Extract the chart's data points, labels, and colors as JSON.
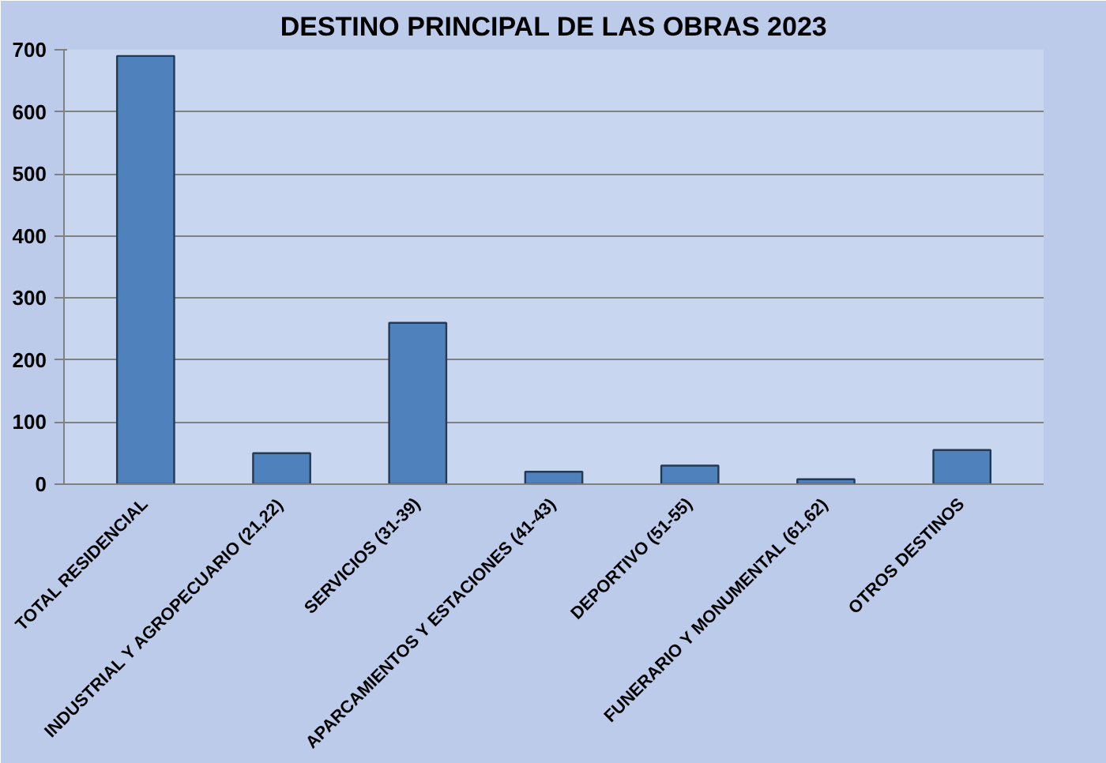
{
  "chart_data": {
    "type": "bar",
    "title": "DESTINO PRINCIPAL DE LAS OBRAS 2023",
    "categories": [
      "TOTAL RESIDENCIAL",
      "INDUSTRIAL Y AGROPECUARIO (21,22)",
      "SERVICIOS (31-39)",
      "APARCAMIENTOS Y ESTACIONES (41-43)",
      "DEPORTIVO (51-55)",
      "FUNERARIO Y MONUMENTAL (61,62)",
      "OTROS DESTINOS"
    ],
    "values": [
      690,
      50,
      260,
      20,
      30,
      8,
      55
    ],
    "color": "#4f81bd",
    "ylim": [
      0,
      700
    ],
    "yticks": [
      0,
      100,
      200,
      300,
      400,
      500,
      600,
      700
    ],
    "grid": "y"
  }
}
